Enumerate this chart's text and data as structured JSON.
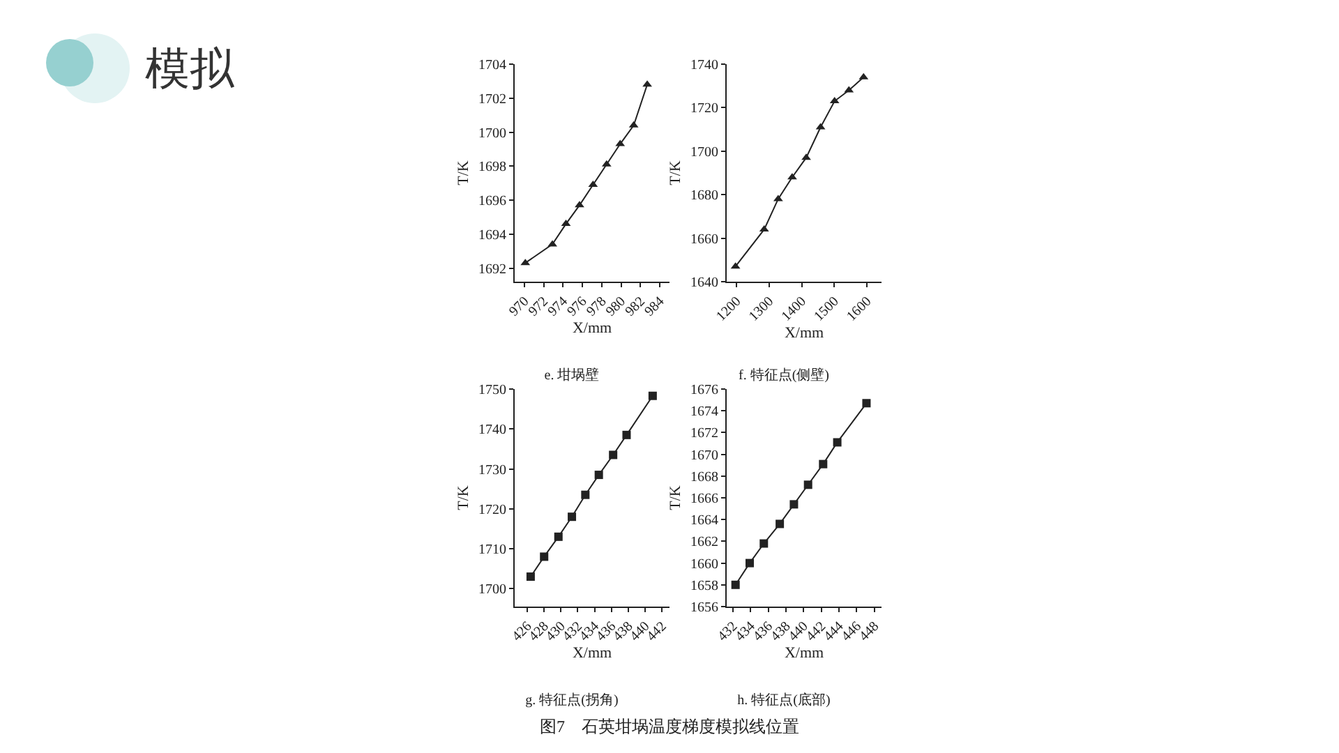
{
  "chart_data": [
    {
      "type": "other",
      "title": "模拟",
      "annotations": [
        "图7　石英坩埚温度梯度模拟线位置"
      ]
    },
    {
      "type": "line",
      "title": "e. 坩埚壁",
      "xlabel": "X/mm",
      "ylabel": "T/K",
      "marker": "triangle",
      "color": "#222222",
      "x": [
        970.1,
        972.9,
        974.3,
        975.7,
        977.1,
        978.5,
        979.9,
        981.3,
        982.7
      ],
      "values": [
        1692.3,
        1693.4,
        1694.6,
        1695.7,
        1696.9,
        1698.1,
        1699.3,
        1700.4,
        1702.8
      ],
      "xlim": [
        969,
        985
      ],
      "xticks": [
        970,
        972,
        974,
        976,
        978,
        980,
        982,
        984
      ],
      "ylim": [
        1691.2,
        1704
      ],
      "yticks": [
        1692,
        1694,
        1696,
        1698,
        1700,
        1702,
        1704
      ]
    },
    {
      "type": "line",
      "title": "f. 特征点(侧壁)",
      "xlabel": "X/mm",
      "ylabel": "T/K",
      "marker": "triangle",
      "color": "#222222",
      "x": [
        1197,
        1285,
        1328,
        1371,
        1414,
        1458,
        1501,
        1545,
        1590
      ],
      "values": [
        1647,
        1664,
        1678,
        1688,
        1697,
        1711,
        1723,
        1728,
        1734
      ],
      "xlim": [
        1170,
        1645
      ],
      "xticks": [
        1200,
        1300,
        1400,
        1500,
        1600
      ],
      "ylim": [
        1640,
        1740
      ],
      "yticks": [
        1640,
        1660,
        1680,
        1700,
        1720,
        1740
      ]
    },
    {
      "type": "line",
      "title": "g. 特征点(拐角)",
      "xlabel": "X/mm",
      "ylabel": "T/K",
      "marker": "square",
      "color": "#222222",
      "x": [
        426.4,
        428.0,
        429.7,
        431.3,
        432.9,
        434.5,
        436.2,
        437.8,
        440.9
      ],
      "values": [
        1703,
        1708,
        1713,
        1718,
        1723.5,
        1728.5,
        1733.5,
        1738.5,
        1748.3
      ],
      "xlim": [
        424.5,
        442.9
      ],
      "xticks": [
        426,
        428,
        430,
        432,
        434,
        436,
        438,
        440,
        442
      ],
      "ylim": [
        1695.5,
        1750
      ],
      "yticks": [
        1700,
        1710,
        1720,
        1730,
        1740,
        1750
      ]
    },
    {
      "type": "line",
      "title": "h. 特征点(底部)",
      "xlabel": "X/mm",
      "ylabel": "T/K",
      "marker": "square",
      "color": "#222222",
      "x": [
        432.3,
        433.9,
        435.5,
        437.3,
        438.9,
        440.5,
        442.2,
        443.8,
        447.1
      ],
      "values": [
        1658,
        1660,
        1661.8,
        1663.6,
        1665.4,
        1667.2,
        1669.1,
        1671.1,
        1674.7
      ],
      "xlim": [
        431.3,
        448.8
      ],
      "xticks": [
        432,
        434,
        436,
        438,
        440,
        442,
        444,
        446,
        448
      ],
      "ylim": [
        1656,
        1676
      ],
      "yticks": [
        1656,
        1658,
        1660,
        1662,
        1664,
        1666,
        1668,
        1670,
        1672,
        1674,
        1676
      ]
    }
  ]
}
